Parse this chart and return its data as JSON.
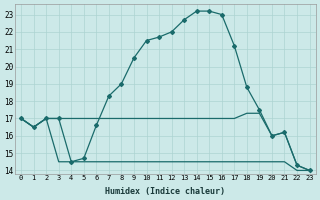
{
  "xlabel": "Humidex (Indice chaleur)",
  "background_color": "#cce9e8",
  "line_color": "#1a6b6b",
  "grid_color": "#add4d2",
  "xlim": [
    -0.5,
    23.5
  ],
  "ylim": [
    13.8,
    23.6
  ],
  "yticks": [
    14,
    15,
    16,
    17,
    18,
    19,
    20,
    21,
    22,
    23
  ],
  "xticks": [
    0,
    1,
    2,
    3,
    4,
    5,
    6,
    7,
    8,
    9,
    10,
    11,
    12,
    13,
    14,
    15,
    16,
    17,
    18,
    19,
    20,
    21,
    22,
    23
  ],
  "line1_x": [
    0,
    1,
    2,
    3,
    4,
    5,
    6,
    7,
    8,
    9,
    10,
    11,
    12,
    13,
    14,
    15,
    16,
    17,
    18,
    19,
    20,
    21,
    22,
    23
  ],
  "line1_y": [
    17.0,
    16.5,
    17.0,
    17.0,
    14.5,
    14.7,
    16.6,
    18.3,
    19.0,
    20.5,
    21.5,
    21.7,
    22.0,
    22.7,
    23.2,
    23.2,
    23.0,
    21.2,
    18.8,
    17.5,
    16.0,
    16.2,
    14.3,
    14.0
  ],
  "line2_x": [
    0,
    1,
    2,
    3,
    4,
    5,
    6,
    7,
    8,
    9,
    10,
    11,
    12,
    13,
    14,
    15,
    16,
    17,
    18,
    19,
    20,
    21,
    22,
    23
  ],
  "line2_y": [
    17.0,
    16.5,
    17.0,
    17.0,
    17.0,
    17.0,
    17.0,
    17.0,
    17.0,
    17.0,
    17.0,
    17.0,
    17.0,
    17.0,
    17.0,
    17.0,
    17.0,
    17.0,
    17.3,
    17.3,
    16.0,
    16.2,
    14.3,
    14.0
  ],
  "line3_x": [
    0,
    1,
    2,
    3,
    4,
    5,
    6,
    7,
    8,
    9,
    10,
    11,
    12,
    13,
    14,
    15,
    16,
    17,
    18,
    19,
    20,
    21,
    22,
    23
  ],
  "line3_y": [
    17.0,
    16.5,
    17.0,
    14.5,
    14.5,
    14.5,
    14.5,
    14.5,
    14.5,
    14.5,
    14.5,
    14.5,
    14.5,
    14.5,
    14.5,
    14.5,
    14.5,
    14.5,
    14.5,
    14.5,
    14.5,
    14.5,
    14.0,
    14.0
  ]
}
